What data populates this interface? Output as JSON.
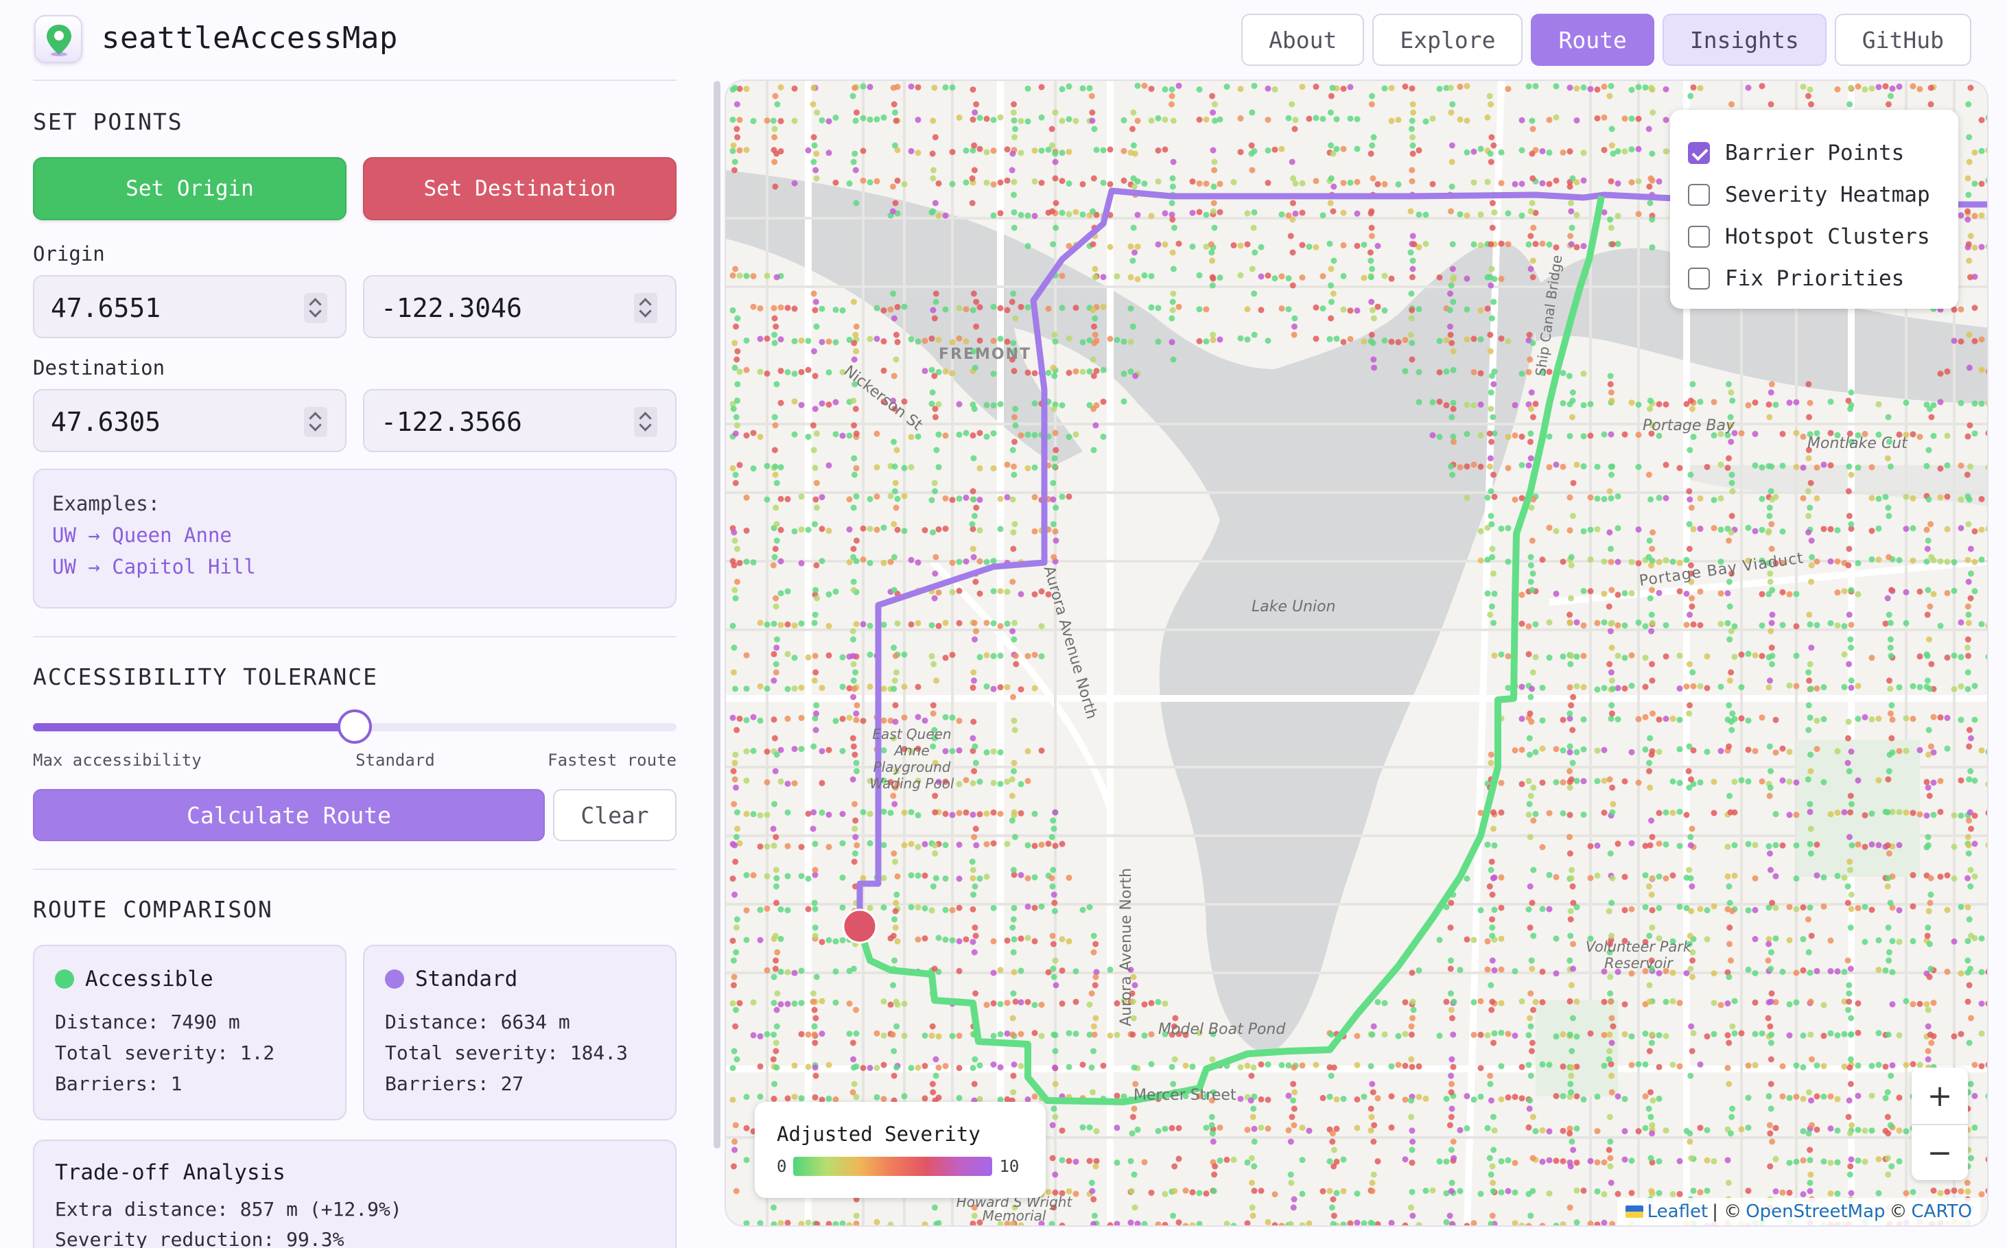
{
  "app": {
    "title": "seattleAccessMap"
  },
  "nav": [
    {
      "label": "About",
      "state": "default"
    },
    {
      "label": "Explore",
      "state": "default"
    },
    {
      "label": "Route",
      "state": "active"
    },
    {
      "label": "Insights",
      "state": "soft"
    },
    {
      "label": "GitHub",
      "state": "default"
    }
  ],
  "set_points": {
    "title": "SET POINTS",
    "origin_button": "Set Origin",
    "destination_button": "Set Destination",
    "origin_label": "Origin",
    "origin_lat": "47.6551",
    "origin_lon": "-122.3046",
    "destination_label": "Destination",
    "destination_lat": "47.6305",
    "destination_lon": "-122.3566"
  },
  "examples": {
    "title": "Examples:",
    "items": [
      "UW → Queen Anne",
      "UW → Capitol Hill"
    ]
  },
  "tolerance": {
    "title": "ACCESSIBILITY TOLERANCE",
    "value": 0.5,
    "min_label": "Max accessibility",
    "mid_label": "Standard",
    "max_label": "Fastest route"
  },
  "actions": {
    "calculate": "Calculate Route",
    "clear": "Clear"
  },
  "comparison": {
    "title": "ROUTE COMPARISON",
    "accessible": {
      "name": "Accessible",
      "color": "#4fd67a",
      "distance": "Distance: 7490 m",
      "severity": "Total severity: 1.2",
      "barriers": "Barriers: 1"
    },
    "standard": {
      "name": "Standard",
      "color": "#a27ce8",
      "distance": "Distance: 6634 m",
      "severity": "Total severity: 184.3",
      "barriers": "Barriers: 27"
    }
  },
  "tradeoff": {
    "title": "Trade-off Analysis",
    "extra_distance": "Extra distance: 857 m (+12.9%)",
    "severity_reduction": "Severity reduction: 99.3%"
  },
  "map": {
    "layers": [
      {
        "label": "Barrier Points",
        "checked": true
      },
      {
        "label": "Severity Heatmap",
        "checked": false
      },
      {
        "label": "Hotspot Clusters",
        "checked": false
      },
      {
        "label": "Fix Priorities",
        "checked": false
      }
    ],
    "legend": {
      "title": "Adjusted Severity",
      "min": "0",
      "max": "10"
    },
    "zoom_in": "+",
    "zoom_out": "−",
    "attribution": {
      "leaflet": "Leaflet",
      "sep1": "| ©",
      "osm": "OpenStreetMap",
      "sep2": "©",
      "carto": "CARTO"
    },
    "place_labels": {
      "fremont": "FREMONT",
      "lake_union": "Lake Union",
      "portage_bay": "Portage Bay",
      "montlake_cut": "Montlake Cut",
      "portage_viaduct": "Portage Bay Viaduct",
      "aurora_north": "Aurora Avenue North",
      "aurora_north_2": "Aurora Avenue North",
      "nickerson": "Nickerson St",
      "eastlake": "Ship Canal Bridge",
      "east_queen_anne": "East Queen Anne Playground Wading Pool",
      "volunteer_park": "Volunteer Park Reservoir",
      "model_boat": "Model Boat Pond",
      "mercer": "Mercer Street",
      "howard_wright": "Howard S Wright Memorial"
    }
  }
}
